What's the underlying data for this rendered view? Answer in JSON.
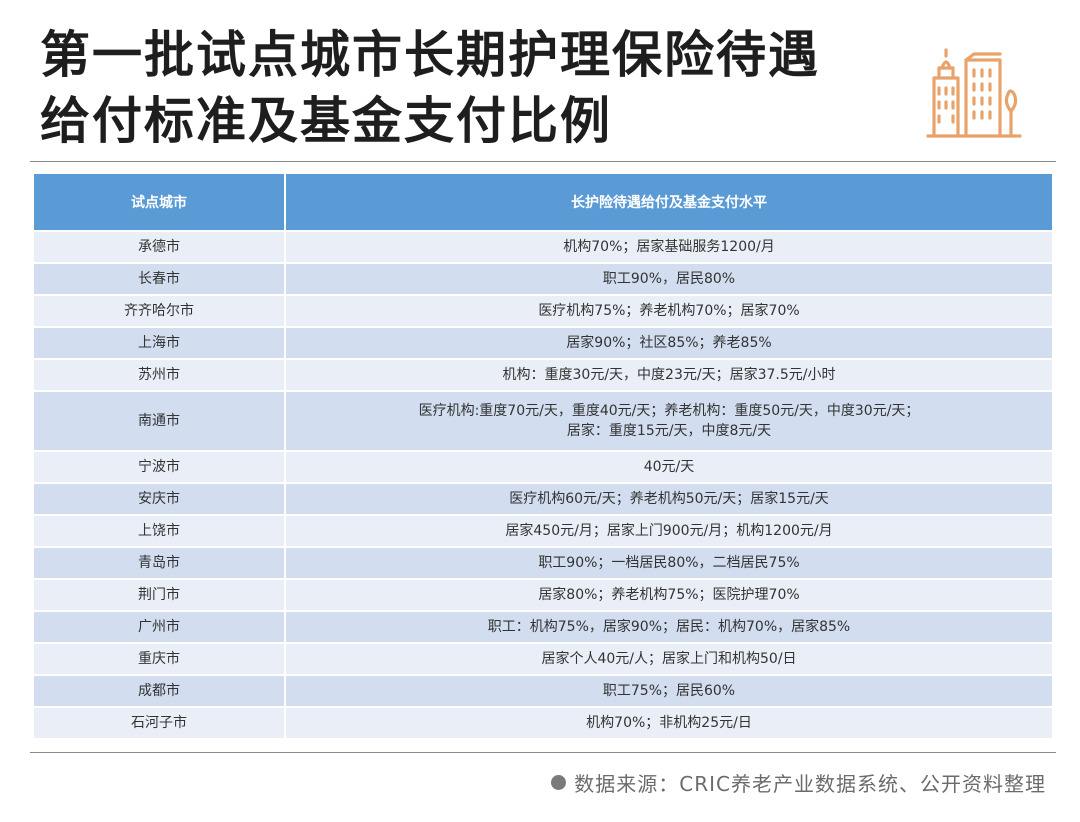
{
  "title": {
    "line1": "第一批试点城市长期护理保险待遇",
    "line2": "给付标准及基金支付比例"
  },
  "logo": {
    "icon": "city-buildings-icon",
    "color": "#e8a36b"
  },
  "table": {
    "header_color": "#5b9bd5",
    "row_colors": [
      "#eaeff7",
      "#d2def0"
    ],
    "columns": [
      "试点城市",
      "长护险待遇给付及基金支付水平"
    ],
    "rows": [
      {
        "city": "承德市",
        "level": "机构70%；居家基础服务1200/月"
      },
      {
        "city": "长春市",
        "level": "职工90%，居民80%"
      },
      {
        "city": "齐齐哈尔市",
        "level": "医疗机构75%；养老机构70%；居家70%"
      },
      {
        "city": "上海市",
        "level": "居家90%；社区85%；养老85%"
      },
      {
        "city": "苏州市",
        "level": "机构：重度30元/天，中度23元/天；居家37.5元/小时"
      },
      {
        "city": "南通市",
        "level": "医疗机构:重度70元/天，重度40元/天；养老机构：重度50元/天，中度30元/天；",
        "level2": "居家：重度15元/天，中度8元/天"
      },
      {
        "city": "宁波市",
        "level": "40元/天"
      },
      {
        "city": "安庆市",
        "level": "医疗机构60元/天；养老机构50元/天；居家15元/天"
      },
      {
        "city": "上饶市",
        "level": "居家450元/月；居家上门900元/月；机构1200元/月"
      },
      {
        "city": "青岛市",
        "level": "职工90%；一档居民80%，二档居民75%"
      },
      {
        "city": "荆门市",
        "level": "居家80%；养老机构75%；医院护理70%"
      },
      {
        "city": "广州市",
        "level": "职工：机构75%，居家90%；居民：机构70%，居家85%"
      },
      {
        "city": "重庆市",
        "level": "居家个人40元/人；居家上门和机构50/日"
      },
      {
        "city": "成都市",
        "level": "职工75%；居民60%"
      },
      {
        "city": "石河子市",
        "level": "机构70%；非机构25元/日"
      }
    ]
  },
  "footer": {
    "source": "数据来源：CRIC养老产业数据系统、公开资料整理"
  }
}
